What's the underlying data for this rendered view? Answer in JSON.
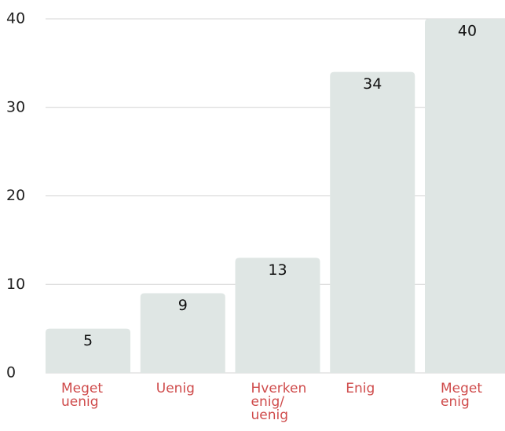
{
  "chart_data": {
    "type": "bar",
    "categories": [
      "Meget uenig",
      "Uenig",
      "Hverken enig/uenig",
      "Enig",
      "Meget enig"
    ],
    "values": [
      5,
      9,
      13,
      34,
      40
    ],
    "color": "#dfe6e4",
    "label_color": "#cf4b4b",
    "ylim": [
      0,
      40
    ],
    "yticks": [
      0,
      10,
      20,
      30,
      40
    ],
    "grid": true
  }
}
